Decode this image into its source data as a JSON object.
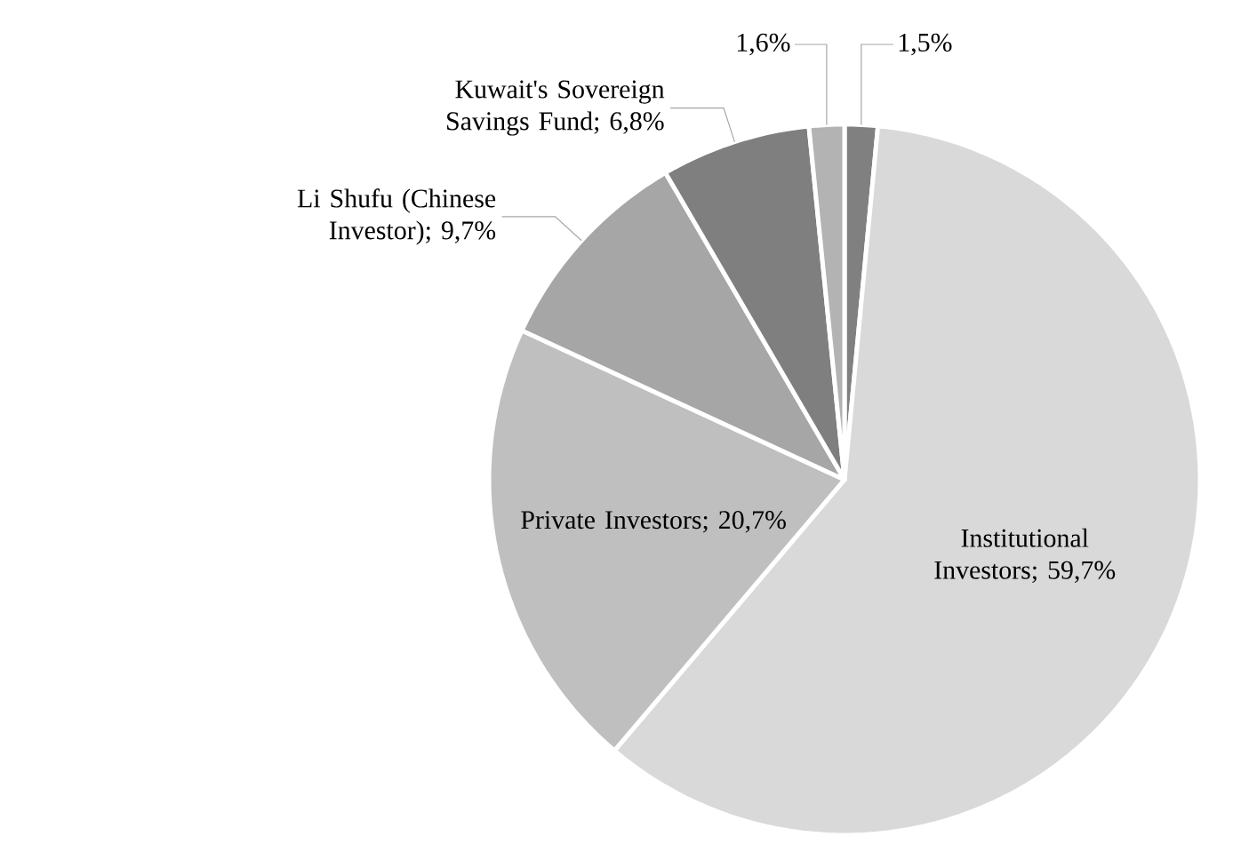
{
  "chart_data": {
    "type": "pie",
    "categories": [
      null,
      "Institutional Investors",
      "Private Investors",
      "Li Shufu (Chinese Investor)",
      "Kuwait's Sovereign Savings Fund",
      null
    ],
    "values": [
      1.5,
      59.7,
      20.7,
      9.7,
      6.8,
      1.6
    ],
    "value_labels": [
      "1,5%",
      "; 59,7%",
      "; 20,7%",
      "; 9,7%",
      "; 6,8%",
      "1,6%"
    ],
    "colors": [
      "#808080",
      "#d9d9d9",
      "#bfbfbf",
      "#a6a6a6",
      "#7f7f7f",
      "#b3b3b3"
    ]
  }
}
